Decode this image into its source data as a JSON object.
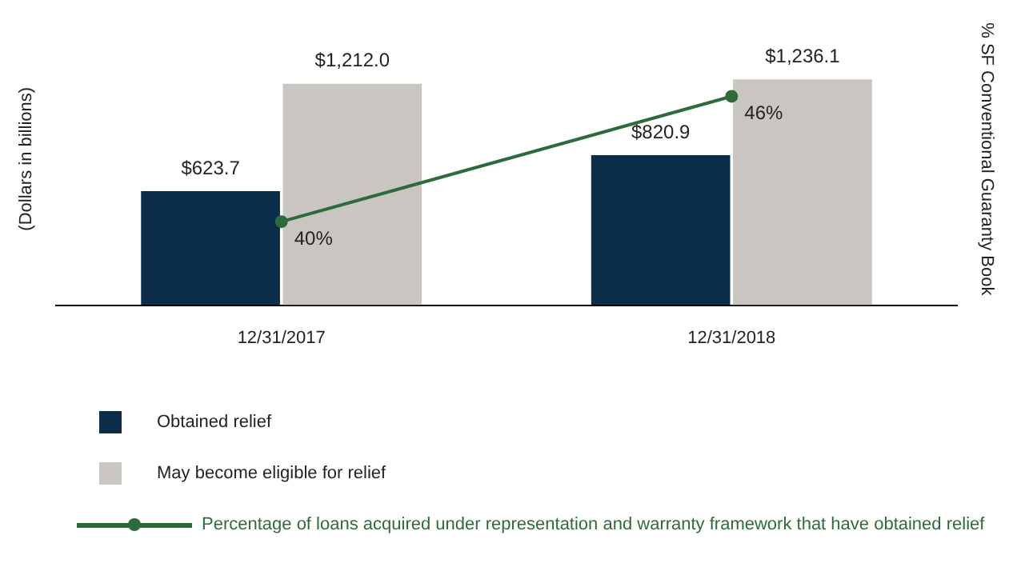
{
  "chart_data": {
    "type": "bar",
    "ylabel": "(Dollars in billions)",
    "y2label": "% SF Conventional Guaranty Book",
    "categories": [
      "12/31/2017",
      "12/31/2018"
    ],
    "series": [
      {
        "name": "Obtained relief",
        "color": "#0b2d4a",
        "values": [
          623.7,
          820.9
        ],
        "value_labels": [
          "$623.7",
          "$820.9"
        ]
      },
      {
        "name": "May become eligible for relief",
        "color": "#c9c6c1",
        "values": [
          1212.0,
          1236.1
        ],
        "value_labels": [
          "$1,212.0",
          "$1,236.1"
        ]
      },
      {
        "name": "Percentage of loans acquired under representation and warranty framework that have obtained relief",
        "type": "line",
        "axis": "y2",
        "color": "#2e6b3a",
        "values": [
          40,
          46
        ],
        "value_labels": [
          "40%",
          "46%"
        ],
        "marker": "circle"
      }
    ],
    "tick_labels": "x",
    "grid": false,
    "legend": "bottom"
  }
}
